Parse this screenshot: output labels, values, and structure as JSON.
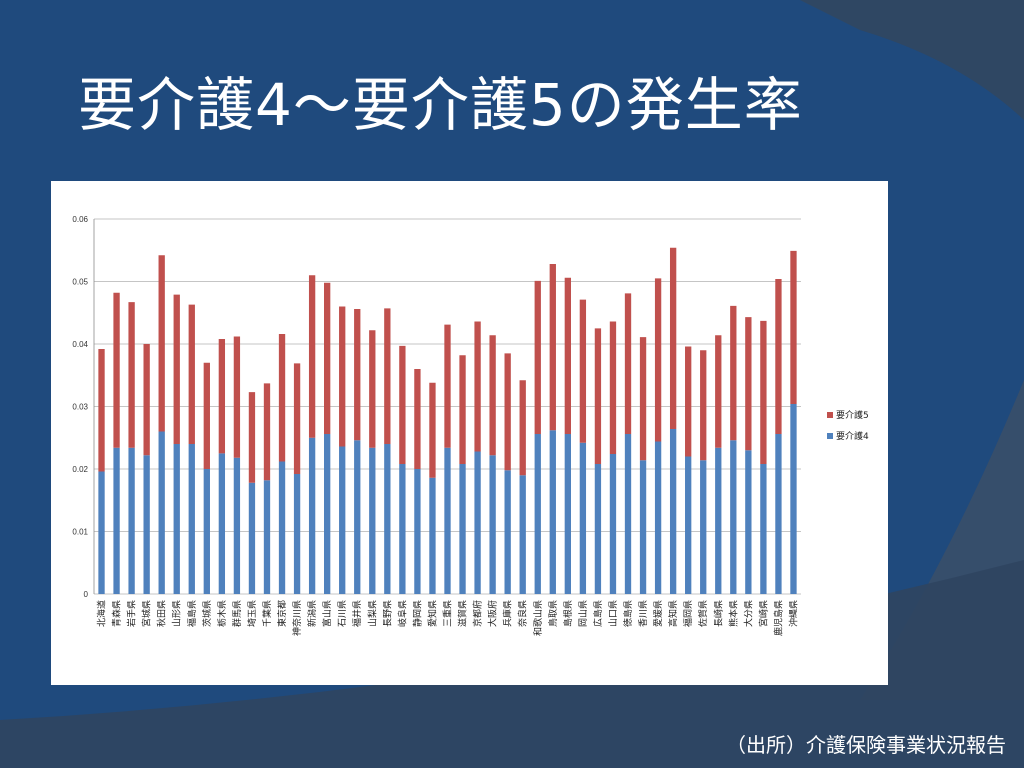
{
  "slide": {
    "title": "要介護4～要介護5の発生率",
    "source": "（出所）介護保険事業状況報告"
  },
  "colors": {
    "background": "#1f4a7d",
    "kaigo4": "#4f81bd",
    "kaigo5": "#c0504d"
  },
  "chart_data": {
    "type": "bar",
    "stacked": true,
    "title": "",
    "xlabel": "",
    "ylabel": "",
    "ylim": [
      0,
      0.06
    ],
    "yticks": [
      0,
      0.01,
      0.02,
      0.03,
      0.04,
      0.05,
      0.06
    ],
    "ytick_labels": [
      "0",
      "0.01",
      "0.02",
      "0.03",
      "0.04",
      "0.05",
      "0.06"
    ],
    "grid": "horizontal",
    "legend_position": "right",
    "categories": [
      "北海道",
      "青森県",
      "岩手県",
      "宮城県",
      "秋田県",
      "山形県",
      "福島県",
      "茨城県",
      "栃木県",
      "群馬県",
      "埼玉県",
      "千葉県",
      "東京都",
      "神奈川県",
      "新潟県",
      "富山県",
      "石川県",
      "福井県",
      "山梨県",
      "長野県",
      "岐阜県",
      "静岡県",
      "愛知県",
      "三重県",
      "滋賀県",
      "京都府",
      "大阪府",
      "兵庫県",
      "奈良県",
      "和歌山県",
      "鳥取県",
      "島根県",
      "岡山県",
      "広島県",
      "山口県",
      "徳島県",
      "香川県",
      "愛媛県",
      "高知県",
      "福岡県",
      "佐賀県",
      "長崎県",
      "熊本県",
      "大分県",
      "宮崎県",
      "鹿児島県",
      "沖縄県"
    ],
    "series": [
      {
        "name": "要介護4",
        "values": [
          0.0196,
          0.0234,
          0.0234,
          0.0222,
          0.026,
          0.024,
          0.024,
          0.02,
          0.0225,
          0.0218,
          0.0178,
          0.0182,
          0.0212,
          0.0192,
          0.025,
          0.0256,
          0.0236,
          0.0246,
          0.0234,
          0.024,
          0.0208,
          0.02,
          0.0186,
          0.0234,
          0.0208,
          0.0228,
          0.0222,
          0.0198,
          0.019,
          0.0256,
          0.0262,
          0.0256,
          0.0242,
          0.0208,
          0.0224,
          0.0256,
          0.0214,
          0.0244,
          0.0264,
          0.022,
          0.0214,
          0.0234,
          0.0246,
          0.023,
          0.0208,
          0.0256,
          0.0304
        ]
      },
      {
        "name": "要介護5",
        "values": [
          0.0196,
          0.0248,
          0.0233,
          0.0178,
          0.0282,
          0.0239,
          0.0223,
          0.017,
          0.0183,
          0.0194,
          0.0145,
          0.0155,
          0.0204,
          0.0177,
          0.026,
          0.0242,
          0.0224,
          0.021,
          0.0188,
          0.0217,
          0.0189,
          0.016,
          0.0152,
          0.0197,
          0.0174,
          0.0208,
          0.0192,
          0.0187,
          0.0152,
          0.0245,
          0.0266,
          0.025,
          0.0229,
          0.0217,
          0.0212,
          0.0225,
          0.0197,
          0.0261,
          0.029,
          0.0176,
          0.0176,
          0.018,
          0.0215,
          0.0213,
          0.0229,
          0.0248,
          0.0245
        ]
      }
    ],
    "legend": [
      {
        "name": "要介護5",
        "color": "#c0504d"
      },
      {
        "name": "要介護4",
        "color": "#4f81bd"
      }
    ]
  }
}
